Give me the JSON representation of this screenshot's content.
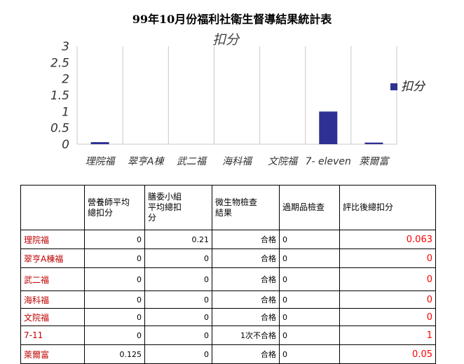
{
  "title": "99年10月份福利社衛生督導結果統計表",
  "chart_data": {
    "type": "bar",
    "title": "扣分",
    "categories": [
      "理院福",
      "翠亨A棟",
      "武二福",
      "海科福",
      "文院福",
      "7- eleven",
      "萊爾富"
    ],
    "series": [
      {
        "name": "扣分",
        "values": [
          0.063,
          0,
          0,
          0,
          0,
          1,
          0.05
        ],
        "color": "#2e3192"
      }
    ],
    "yticks": [
      "0",
      "0.5",
      "1",
      "1.5",
      "2",
      "2.5",
      "3"
    ],
    "ylim": [
      0,
      3
    ],
    "grid": "vertical",
    "legend": "right"
  },
  "table": {
    "headers": [
      "",
      "營養師平均總扣分",
      "膳委小組平均總扣分",
      "微生物檢查結果",
      "過期品檢查",
      "評比後總扣分"
    ],
    "rows": [
      {
        "name": "理院福",
        "nutri": "0",
        "committee": "0.21",
        "micro": "合格",
        "expired": "0",
        "total": "0.063"
      },
      {
        "name": "翠亨A棟福",
        "nutri": "0",
        "committee": "0",
        "micro": "合格",
        "expired": "0",
        "total": "0"
      },
      {
        "name": "武二福",
        "nutri": "0",
        "committee": "0",
        "micro": "合格",
        "expired": "0",
        "total": "0"
      },
      {
        "name": "海科福",
        "nutri": "0",
        "committee": "0",
        "micro": "合格",
        "expired": "0",
        "total": "0"
      },
      {
        "name": "文院福",
        "nutri": "0",
        "committee": "0",
        "micro": "合格",
        "expired": "0",
        "total": "0"
      },
      {
        "name": "7-11",
        "nutri": "0",
        "committee": "0",
        "micro": "1次不合格",
        "expired": "0",
        "total": "1"
      },
      {
        "name": "萊爾富",
        "nutri": "0.125",
        "committee": "0",
        "micro": "合格",
        "expired": "0",
        "total": "0.05"
      }
    ]
  }
}
